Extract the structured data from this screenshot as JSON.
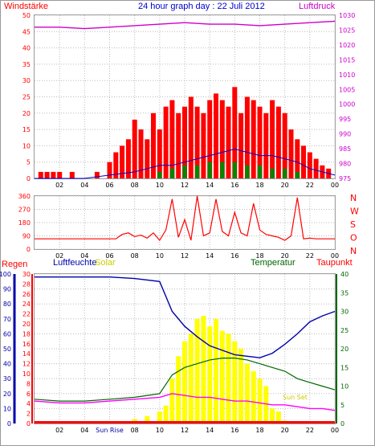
{
  "header": {
    "title": "24 hour graph day : 22 Juli 2012"
  },
  "labels": {
    "windstaerke": "Windstärke",
    "luftdruck": "Luftdruck",
    "regen": "Regen",
    "luftfeuchte": "Luftfeuchte",
    "solar": "Solar",
    "temperatur": "Temperatur",
    "taupunkt": "Taupunkt",
    "sun_rise": "Sun Rise",
    "sun_set": "Sun Set"
  },
  "colors": {
    "wind": "#ff0000",
    "wind_avg": "#0000cc",
    "wind_green": "#008800",
    "pressure": "#cc00cc",
    "direction": "#ff0000",
    "humidity": "#0000aa",
    "solar": "#ffff00",
    "temperature": "#006600",
    "dewpoint": "#ff00ff",
    "rain": "#ff0000",
    "axis_left_bottom": "#0000aa",
    "axis_right_bottom": "#006600"
  },
  "chart_data": [
    {
      "type": "line",
      "id": "wind-pressure",
      "title": "24 hour graph day : 22 Juli 2012",
      "x_ticks": [
        "02",
        "04",
        "06",
        "08",
        "10",
        "12",
        "14",
        "16",
        "18",
        "20",
        "22",
        "00"
      ],
      "y_left": {
        "label": "Windstärke",
        "ticks": [
          0,
          5,
          10,
          15,
          20,
          25,
          30,
          35,
          40,
          45,
          50
        ],
        "range": [
          0,
          50
        ]
      },
      "y_right": {
        "label": "Luftdruck",
        "ticks": [
          975,
          980,
          985,
          990,
          995,
          1000,
          1005,
          1010,
          1015,
          1020,
          1025,
          1030
        ],
        "range": [
          975,
          1030
        ]
      },
      "series": [
        {
          "name": "Windstärke",
          "axis": "left",
          "style": "bars",
          "hours": [
            0.5,
            1.0,
            1.5,
            2.0,
            3.0,
            5.0,
            6.0,
            6.5,
            7.0,
            7.5,
            8.0,
            8.5,
            9.0,
            9.5,
            10.0,
            10.5,
            11.0,
            11.5,
            12.0,
            12.5,
            13.0,
            13.5,
            14.0,
            14.5,
            15.0,
            15.5,
            16.0,
            16.5,
            17.0,
            17.5,
            18.0,
            18.5,
            19.0,
            19.5,
            20.0,
            20.5,
            21.0,
            21.5,
            22.0,
            22.5,
            23.0,
            23.5
          ],
          "values": [
            2,
            2,
            2,
            2,
            2,
            2,
            5,
            8,
            10,
            12,
            18,
            15,
            12,
            20,
            15,
            22,
            24,
            20,
            22,
            25,
            22,
            20,
            24,
            26,
            24,
            22,
            28,
            20,
            25,
            24,
            22,
            20,
            24,
            22,
            20,
            15,
            12,
            10,
            8,
            6,
            4,
            3
          ]
        },
        {
          "name": "wind average",
          "axis": "left",
          "style": "line",
          "color_key": "wind_avg",
          "hours": [
            0,
            2,
            4,
            6,
            8,
            9,
            10,
            11,
            12,
            13,
            14,
            15,
            16,
            17,
            18,
            19,
            20,
            21,
            22,
            23,
            24
          ],
          "values": [
            0,
            0,
            0,
            1,
            2,
            3,
            4,
            4,
            5,
            6,
            7,
            8,
            9,
            8,
            7,
            7,
            6,
            5,
            3,
            2,
            1
          ]
        },
        {
          "name": "wind green",
          "axis": "left",
          "style": "bars",
          "color_key": "wind_green",
          "hours": [
            10,
            11,
            12,
            13,
            14,
            15,
            16,
            17,
            18,
            19,
            20,
            21
          ],
          "values": [
            2,
            3,
            4,
            4,
            5,
            5,
            5,
            4,
            4,
            3,
            3,
            2
          ]
        },
        {
          "name": "Luftdruck",
          "axis": "right",
          "style": "line",
          "hours": [
            0,
            2,
            4,
            6,
            8,
            10,
            12,
            14,
            16,
            18,
            20,
            22,
            24
          ],
          "values": [
            1026,
            1026,
            1025.5,
            1026,
            1026.5,
            1027,
            1027.5,
            1027,
            1027,
            1026.5,
            1027,
            1027.5,
            1028
          ]
        }
      ]
    },
    {
      "type": "line",
      "id": "wind-direction",
      "x_ticks": [
        "02",
        "04",
        "06",
        "08",
        "10",
        "12",
        "14",
        "16",
        "18",
        "20",
        "22",
        "00"
      ],
      "y_left": {
        "ticks": [
          0,
          90,
          180,
          270,
          360
        ],
        "range": [
          0,
          360
        ]
      },
      "y_right": {
        "ticks": [
          "N",
          "W",
          "S",
          "O",
          "N"
        ]
      },
      "series": [
        {
          "name": "wind direction",
          "hours": [
            0,
            6,
            6.5,
            7,
            7.5,
            8,
            8.5,
            9,
            9.5,
            10,
            10.5,
            11,
            11.5,
            12,
            12.5,
            13,
            13.5,
            14,
            14.5,
            15,
            15.5,
            16,
            16.5,
            17,
            17.5,
            18,
            18.5,
            19,
            19.5,
            20,
            20.5,
            21,
            21.5,
            22,
            22.5,
            23,
            24
          ],
          "values": [
            70,
            70,
            70,
            100,
            110,
            85,
            95,
            75,
            110,
            60,
            130,
            340,
            80,
            200,
            60,
            360,
            90,
            110,
            340,
            120,
            90,
            250,
            110,
            90,
            310,
            130,
            100,
            90,
            80,
            60,
            90,
            350,
            70,
            75,
            70,
            70,
            70
          ]
        }
      ]
    },
    {
      "type": "line",
      "id": "weather",
      "x_ticks": [
        "02",
        "04",
        "Sun Rise",
        "08",
        "10",
        "12",
        "14",
        "16",
        "18",
        "20",
        "22",
        "00"
      ],
      "y_left_outer": {
        "label": "Regen",
        "ticks": [
          0,
          10,
          20,
          30,
          40,
          50,
          60,
          70,
          80,
          90,
          100
        ],
        "range": [
          0,
          100
        ]
      },
      "y_left_inner": {
        "label": "Luftfeuchte",
        "ticks": [
          0,
          2,
          4,
          6,
          8,
          10,
          12,
          14,
          16,
          18,
          20,
          22,
          24,
          26,
          28,
          30
        ],
        "range": [
          0,
          30
        ]
      },
      "y_right": {
        "label": "Temperatur",
        "ticks": [
          0,
          5,
          10,
          15,
          20,
          25,
          30,
          35,
          40
        ],
        "range": [
          0,
          40
        ]
      },
      "series": [
        {
          "name": "Luftfeuchte",
          "axis": "left_outer",
          "hours": [
            0,
            2,
            4,
            6,
            8,
            10,
            10.5,
            11,
            12,
            13,
            14,
            15,
            16,
            17,
            18,
            19,
            20,
            21,
            22,
            23,
            24
          ],
          "values": [
            98,
            98,
            98,
            98,
            97,
            95,
            85,
            75,
            65,
            58,
            52,
            49,
            46,
            45,
            44,
            47,
            53,
            60,
            68,
            72,
            75
          ]
        },
        {
          "name": "Solar",
          "axis": "left_outer",
          "style": "bars",
          "hours": [
            6,
            7,
            8,
            9,
            10,
            10.5,
            11,
            11.5,
            12,
            12.5,
            13,
            13.5,
            14,
            14.5,
            15,
            15.5,
            16,
            16.5,
            17,
            17.5,
            18,
            18.5,
            19,
            19.5,
            20
          ],
          "values": [
            0,
            1,
            3,
            5,
            8,
            12,
            30,
            45,
            55,
            60,
            70,
            72,
            65,
            70,
            62,
            60,
            55,
            50,
            40,
            35,
            30,
            25,
            10,
            8,
            2
          ]
        },
        {
          "name": "Temperatur",
          "axis": "right",
          "hours": [
            0,
            2,
            4,
            6,
            8,
            9,
            10,
            11,
            12,
            13,
            14,
            15,
            16,
            17,
            18,
            19,
            20,
            21,
            22,
            23,
            24
          ],
          "values": [
            6.5,
            6,
            6,
            6.5,
            7,
            7.5,
            8,
            13,
            15,
            16,
            17,
            17.5,
            17.5,
            17,
            16,
            15,
            14,
            12,
            11,
            10,
            9
          ]
        },
        {
          "name": "Taupunkt",
          "axis": "right",
          "hours": [
            0,
            2,
            4,
            6,
            8,
            10,
            11,
            12,
            13,
            14,
            15,
            16,
            17,
            18,
            19,
            20,
            21,
            22,
            23,
            24
          ],
          "values": [
            6,
            5.5,
            5.5,
            6,
            6.5,
            7,
            8,
            7.5,
            7,
            7,
            6.5,
            6,
            6,
            5.5,
            5,
            5,
            4.5,
            4,
            4,
            3.5
          ]
        },
        {
          "name": "Regen",
          "axis": "left_outer",
          "hours": [
            0,
            24
          ],
          "values": [
            0,
            0
          ]
        }
      ]
    }
  ]
}
